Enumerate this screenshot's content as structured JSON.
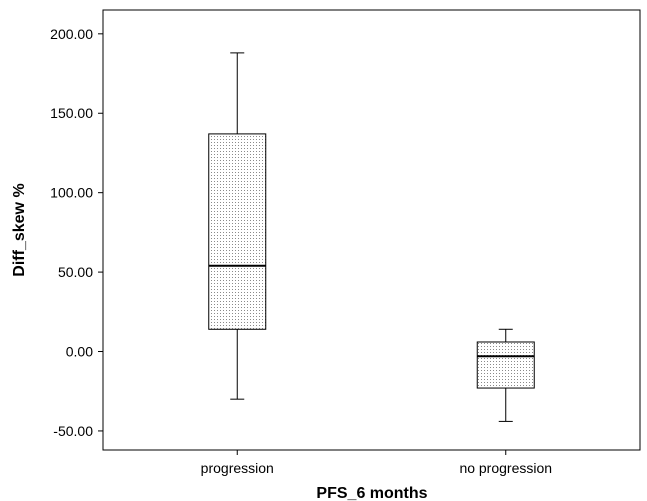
{
  "chart_data": {
    "type": "box",
    "xlabel": "PFS_6 months",
    "ylabel": "Diff_skew %",
    "ylim": [
      -62,
      215
    ],
    "yticks": [
      -50,
      0,
      50,
      100,
      150,
      200
    ],
    "ytick_labels": [
      "-50.00",
      "0.00",
      "50.00",
      "100.00",
      "150.00",
      "200.00"
    ],
    "grid": false,
    "categories": [
      "progression",
      "no progression"
    ],
    "boxes": [
      {
        "category": "progression",
        "min": -30,
        "q1": 14,
        "median": 54,
        "q3": 137,
        "max": 188
      },
      {
        "category": "no progression",
        "min": -44,
        "q1": -23,
        "median": -3,
        "q3": 6,
        "max": 14
      }
    ]
  }
}
